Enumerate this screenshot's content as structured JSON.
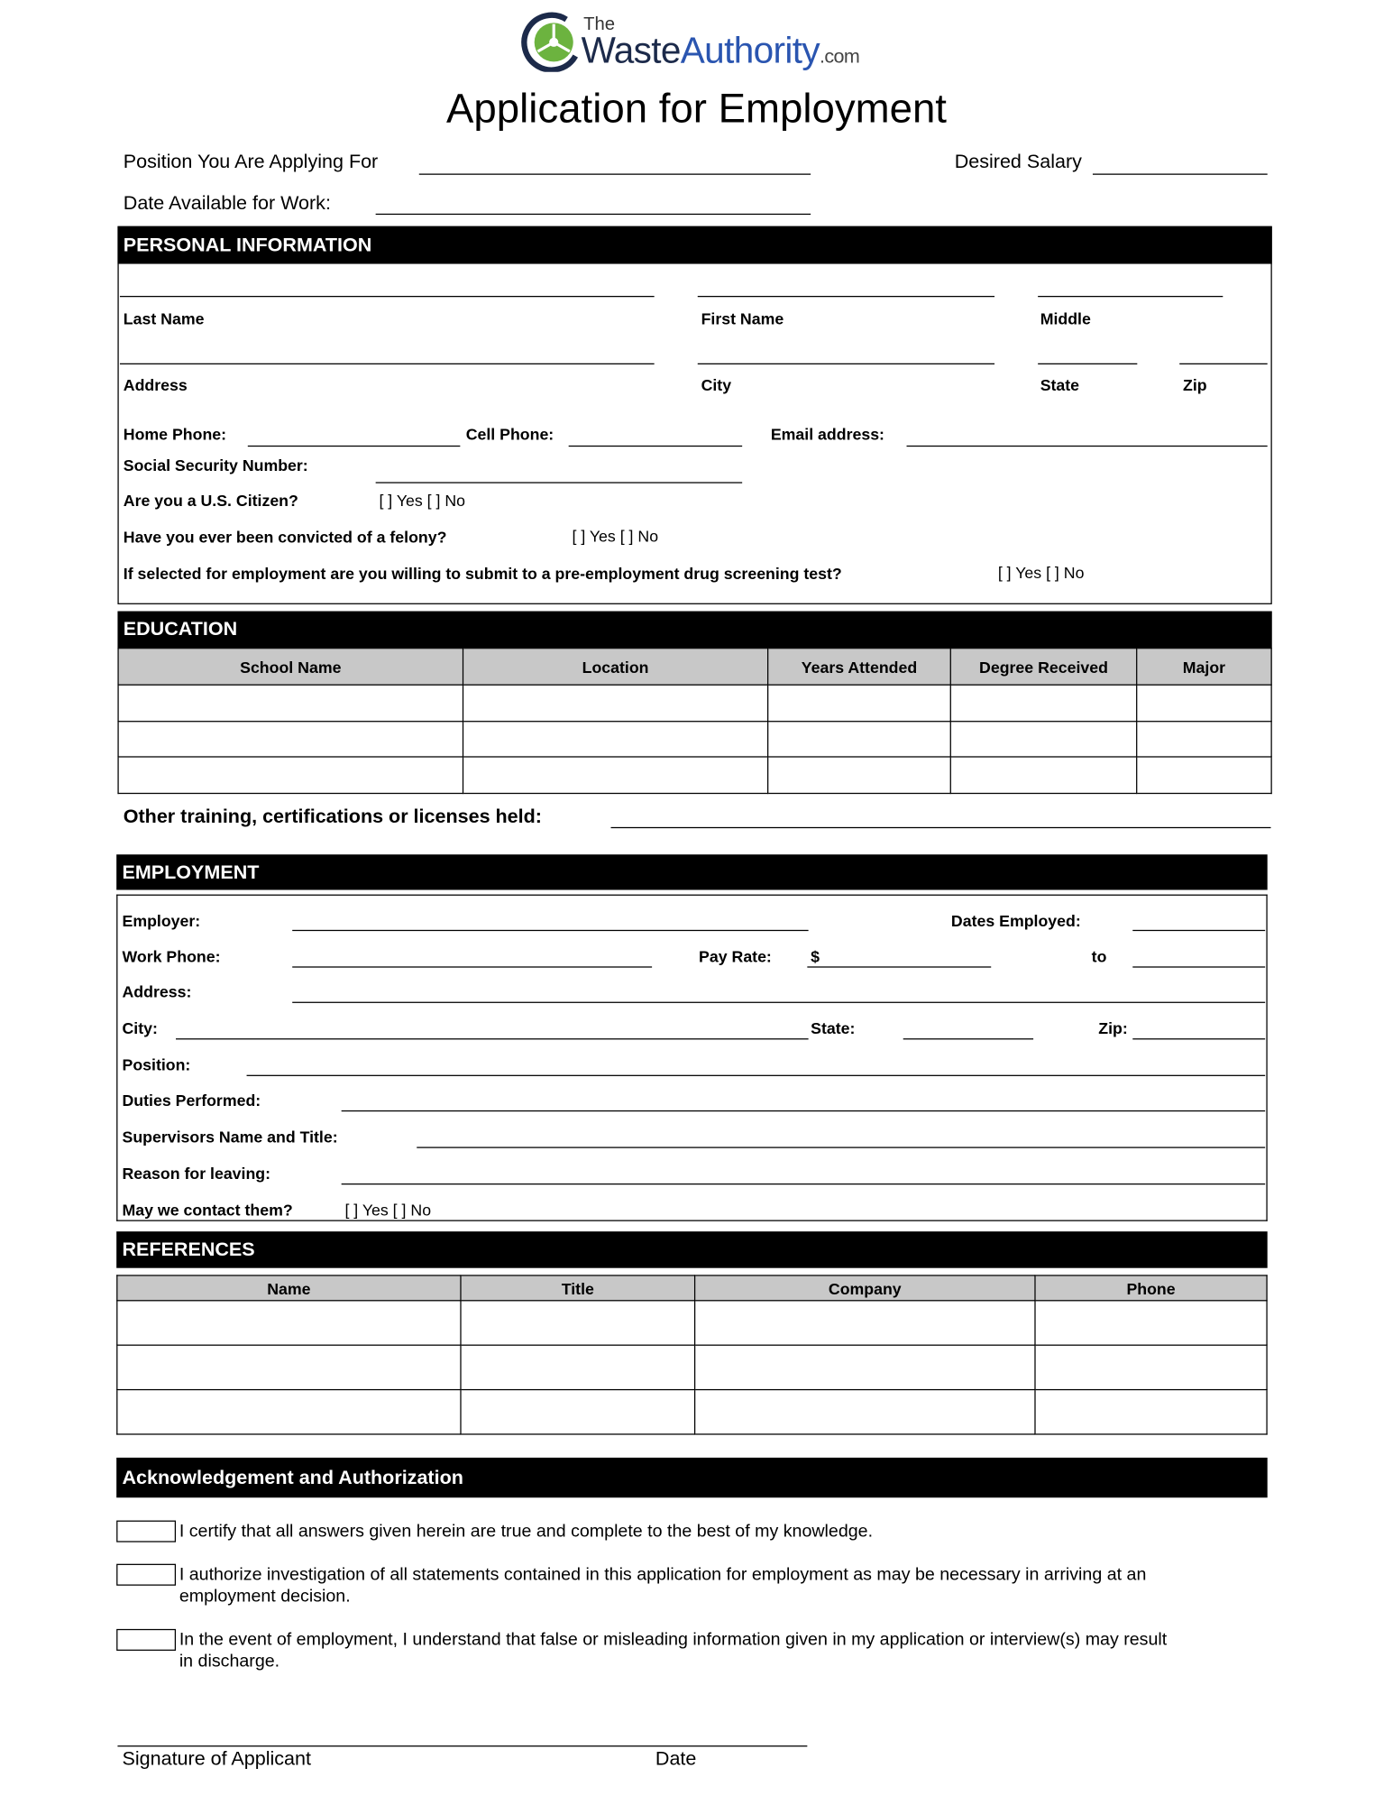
{
  "logo": {
    "the": "The",
    "waste": "Waste",
    "authority": "Authority",
    "com": ".com",
    "colors": {
      "navy": "#1c2a4a",
      "blue": "#2a55b0",
      "green": "#6cb33f"
    }
  },
  "title": "Application for Employment",
  "top_fields": {
    "position": "Position You Are Applying For",
    "salary": "Desired Salary",
    "date_available": "Date Available for Work:"
  },
  "personal": {
    "header": "PERSONAL INFORMATION",
    "last_name": "Last Name",
    "first_name": "First Name",
    "middle": "Middle",
    "address": "Address",
    "city": "City",
    "state": "State",
    "zip": "Zip",
    "home_phone": "Home Phone:",
    "cell_phone": "Cell Phone:",
    "email": "Email address:",
    "ssn": "Social Security Number:",
    "citizen": "Are you a U.S. Citizen?",
    "felony": "Have you ever been convicted of a felony?",
    "drug": "If selected for employment are you willing to submit to a pre-employment drug screening test?",
    "yes_no": "[ ]  Yes [  ]  No"
  },
  "education": {
    "header": "EDUCATION",
    "columns": [
      "School Name",
      "Location",
      "Years Attended",
      "Degree Received",
      "Major"
    ],
    "other_training": "Other training, certifications or licenses held:"
  },
  "employment": {
    "header": "EMPLOYMENT",
    "employer": "Employer:",
    "dates_employed": "Dates Employed:",
    "work_phone": "Work Phone:",
    "pay_rate": "Pay Rate:",
    "dollar": "$",
    "to": "to",
    "address": "Address:",
    "city": "City:",
    "state": "State:",
    "zip": "Zip:",
    "position": "Position:",
    "duties": "Duties Performed:",
    "supervisor": "Supervisors Name and Title:",
    "reason": "Reason for leaving:",
    "contact": "May we contact them?",
    "yes_no": "[ ]  Yes [  ]  No"
  },
  "references": {
    "header": "REFERENCES",
    "columns": [
      "Name",
      "Title",
      "Company",
      "Phone"
    ]
  },
  "acknowledgement": {
    "header": "Acknowledgement and Authorization",
    "items": [
      "I certify that all answers given herein are true and complete to the best of my knowledge.",
      "I authorize investigation of all statements contained in this application for employment as may be necessary in arriving at an employment decision.",
      "In the event of employment, I understand that false or misleading information given in my application or interview(s) may result in discharge."
    ]
  },
  "signature": {
    "label": "Signature of  Applicant",
    "date": "Date"
  }
}
